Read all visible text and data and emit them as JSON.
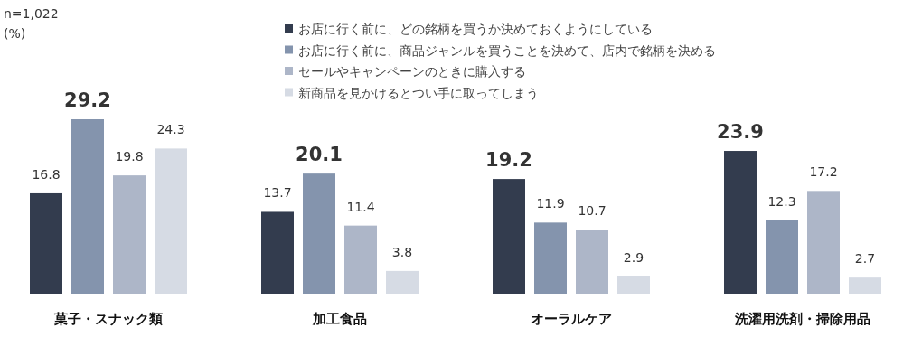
{
  "chart_data": {
    "type": "bar",
    "annotations": [
      "n=1,022",
      "(%)"
    ],
    "categories": [
      "菓子・スナック類",
      "加工食品",
      "オーラルケア",
      "洗濯用洗剤・掃除用品"
    ],
    "series": [
      {
        "name": "お店に行く前に、どの銘柄を買うか決めておくようにしている",
        "color": "#333c4e",
        "values": [
          16.8,
          13.7,
          19.2,
          23.9
        ]
      },
      {
        "name": "お店に行く前に、商品ジャンルを買うことを決めて、店内で銘柄を決める",
        "color": "#8494ad",
        "values": [
          29.2,
          20.1,
          11.9,
          12.3
        ]
      },
      {
        "name": "セールやキャンペーンのときに購入する",
        "color": "#adb6c8",
        "values": [
          19.8,
          11.4,
          10.7,
          17.2
        ]
      },
      {
        "name": "新商品を見かけるとつい手に取ってしまう",
        "color": "#d6dbe4",
        "values": [
          24.3,
          3.8,
          2.9,
          2.7
        ]
      }
    ],
    "data_labels": true,
    "legend": "top"
  }
}
